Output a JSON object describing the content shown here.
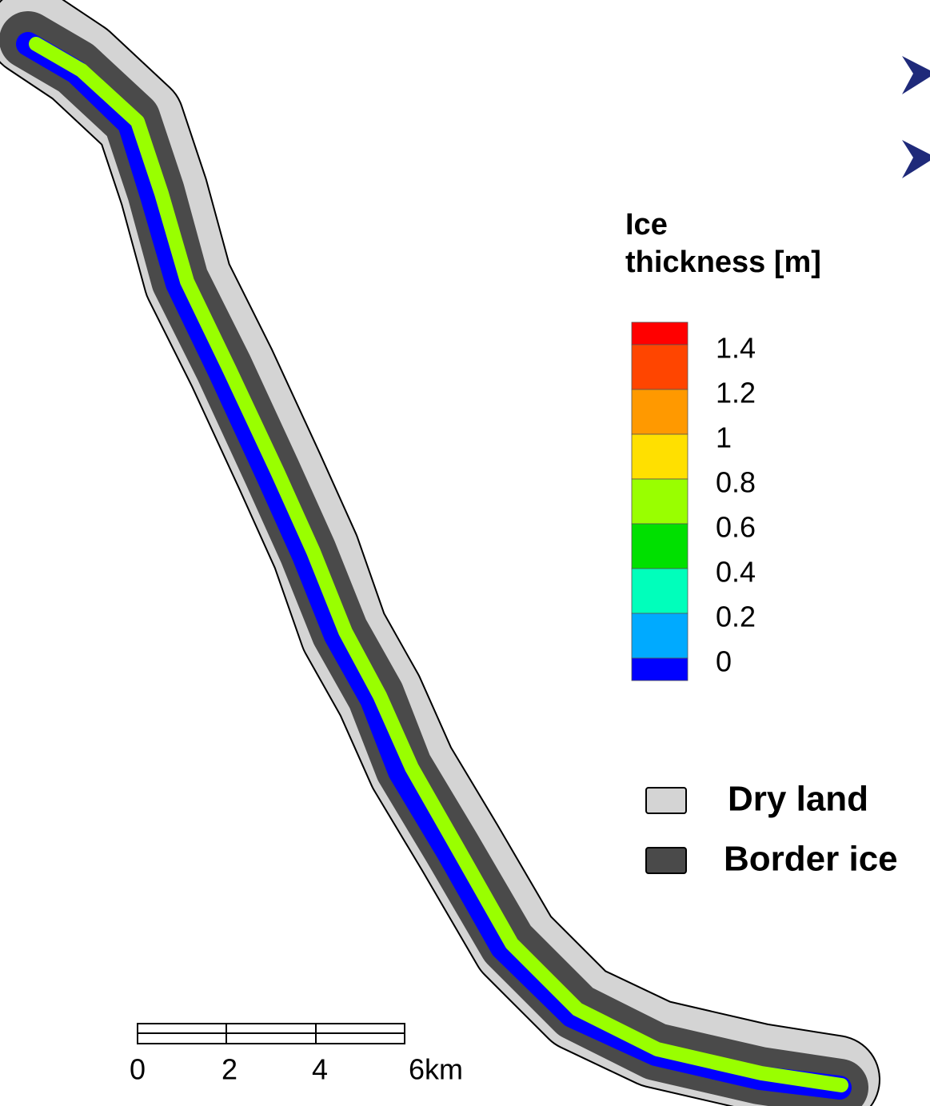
{
  "legend": {
    "title_lines": [
      "Ice",
      "thickness [m]"
    ],
    "colorbar": {
      "colors": [
        "#ff0000",
        "#ff4500",
        "#ff9900",
        "#ffe000",
        "#99ff00",
        "#00e000",
        "#00ffbb",
        "#00aaff",
        "#0000ff"
      ],
      "labels": [
        "1.4",
        "1.2",
        "1",
        "0.8",
        "0.6",
        "0.4",
        "0.2",
        "0"
      ]
    }
  },
  "land_legend": [
    {
      "label": "Dry land",
      "color": "#d4d4d4"
    },
    {
      "label": "Border ice",
      "color": "#4a4a4a"
    }
  ],
  "scale_bar": {
    "labels": [
      "0",
      "2",
      "4",
      "6km"
    ]
  }
}
